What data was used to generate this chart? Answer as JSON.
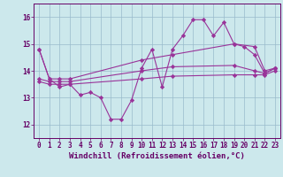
{
  "background_color": "#cce8ec",
  "grid_color": "#99bbcc",
  "line_color": "#993399",
  "marker_color": "#993399",
  "xlabel": "Windchill (Refroidissement éolien,°C)",
  "xlim": [
    -0.5,
    23.5
  ],
  "ylim": [
    11.5,
    16.5
  ],
  "yticks": [
    12,
    13,
    14,
    15,
    16
  ],
  "xticks": [
    0,
    1,
    2,
    3,
    4,
    5,
    6,
    7,
    8,
    9,
    10,
    11,
    12,
    13,
    14,
    15,
    16,
    17,
    18,
    19,
    20,
    21,
    22,
    23
  ],
  "series1_x": [
    0,
    1,
    2,
    3,
    4,
    5,
    6,
    7,
    8,
    9,
    10,
    11,
    12,
    13,
    14,
    15,
    16,
    17,
    18,
    19,
    20,
    21,
    22,
    23
  ],
  "series1_y": [
    14.8,
    13.7,
    13.4,
    13.5,
    13.1,
    13.2,
    13.0,
    12.2,
    12.2,
    12.9,
    14.1,
    14.8,
    13.4,
    14.8,
    15.3,
    15.9,
    15.9,
    15.3,
    15.8,
    15.0,
    14.9,
    14.6,
    13.9,
    14.1
  ],
  "series2_x": [
    0,
    1,
    2,
    3,
    10,
    13,
    19,
    21,
    22,
    23
  ],
  "series2_y": [
    14.8,
    13.7,
    13.7,
    13.7,
    14.4,
    14.6,
    15.0,
    14.9,
    14.0,
    14.1
  ],
  "series3_x": [
    0,
    1,
    2,
    3,
    10,
    13,
    19,
    21,
    22,
    23
  ],
  "series3_y": [
    13.7,
    13.6,
    13.6,
    13.6,
    14.0,
    14.15,
    14.2,
    14.0,
    13.9,
    14.1
  ],
  "series4_x": [
    0,
    1,
    2,
    3,
    10,
    13,
    19,
    21,
    22,
    23
  ],
  "series4_y": [
    13.6,
    13.5,
    13.5,
    13.5,
    13.7,
    13.8,
    13.85,
    13.85,
    13.85,
    14.0
  ]
}
